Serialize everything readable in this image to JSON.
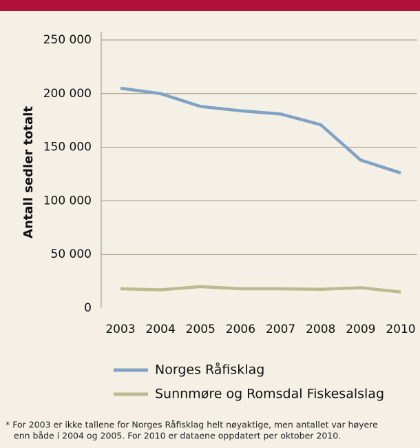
{
  "chart_data": {
    "type": "line",
    "ylabel": "Antall sedler totalt",
    "categories": [
      "2003",
      "2004",
      "2005",
      "2006",
      "2007",
      "2008",
      "2009",
      "2010"
    ],
    "series": [
      {
        "name": "Norges Råfisklag",
        "color": "#7fa2c5",
        "values": [
          205000,
          200000,
          188000,
          184000,
          181000,
          171000,
          138000,
          126000
        ]
      },
      {
        "name": "Sunnmøre og Romsdal Fiskesalslag",
        "color": "#bbbb8f",
        "values": [
          18000,
          17000,
          20000,
          18000,
          18000,
          17500,
          19000,
          15000
        ]
      }
    ],
    "ylim": [
      0,
      250000
    ],
    "yticks": [
      0,
      {
        "value": 50000,
        "label": "50 000"
      },
      {
        "value": 100000,
        "label": "100 000"
      },
      {
        "value": 150000,
        "label": "150 000"
      },
      {
        "value": 200000,
        "label": "200 000"
      },
      {
        "value": 250000,
        "label": "250 000"
      }
    ],
    "grid": true,
    "notes": [
      "* For 2003 er ikke tallene for Norges Råfisklag helt nøyaktige, men antallet var høyere",
      "enn både i 2004 og 2005. For 2010 er dataene oppdatert per oktober 2010."
    ]
  }
}
